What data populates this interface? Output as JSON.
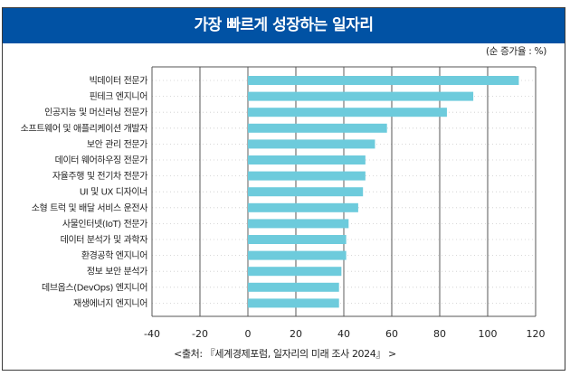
{
  "header": {
    "title": "가장 빠르게 성장하는 일자리"
  },
  "unit_note": "(순 증가율 : %)",
  "source": "<출처: 『세계경제포럼, 일자리의 미래 조사 2024』 >",
  "colors": {
    "header_bg": "#0152a4",
    "bar": "#6dcbdc",
    "grid": "#555555"
  },
  "chart_data": {
    "type": "bar",
    "orientation": "horizontal",
    "title": "가장 빠르게 성장하는 일자리",
    "xlabel": "",
    "ylabel": "",
    "unit": "순 증가율 (%)",
    "xlim": [
      -40,
      120
    ],
    "xticks": [
      -40,
      -20,
      0,
      20,
      40,
      60,
      80,
      100,
      120
    ],
    "grid": "vertical",
    "categories": [
      "빅데이터 전문가",
      "핀테크 엔지니어",
      "인공지능 및 머신러닝 전문가",
      "소프트웨어 및 애플리케이션 개발자",
      "보안 관리 전문가",
      "데이터 웨어하우징 전문가",
      "자율주행 및 전기차 전문가",
      "UI 및 UX 디자이너",
      "소형 트럭 및 배달 서비스 운전사",
      "사물인터넷(IoT) 전문가",
      "데이터 분석가 및 과학자",
      "환경공학 엔지니어",
      "정보 보안 분석가",
      "데브옵스(DevOps) 엔지니어",
      "재생에너지 엔지니어"
    ],
    "values": [
      113,
      94,
      83,
      58,
      53,
      49,
      49,
      48,
      46,
      42,
      41,
      41,
      39,
      38,
      38
    ]
  }
}
